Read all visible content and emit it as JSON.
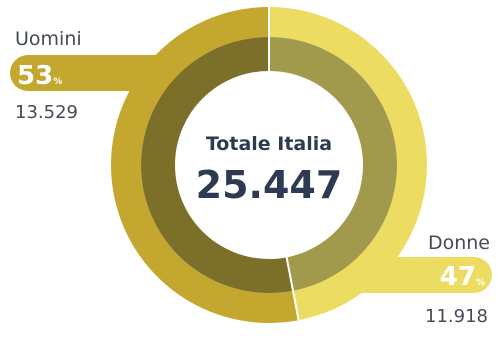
{
  "chart_data": {
    "type": "pie",
    "center": {
      "title": "Totale Italia",
      "total": "25.447"
    },
    "slices": [
      {
        "name": "Uomini",
        "share": 53,
        "percent_label": "53",
        "percent_sign": "%",
        "count": "13.529",
        "color_outer": "#c4a72e",
        "color_inner": "#7c6f2a"
      },
      {
        "name": "Donne",
        "share": 47,
        "percent_label": "47",
        "percent_sign": "%",
        "count": "11.918",
        "color_outer": "#ecdc62",
        "color_inner": "#a19a4c"
      }
    ]
  }
}
